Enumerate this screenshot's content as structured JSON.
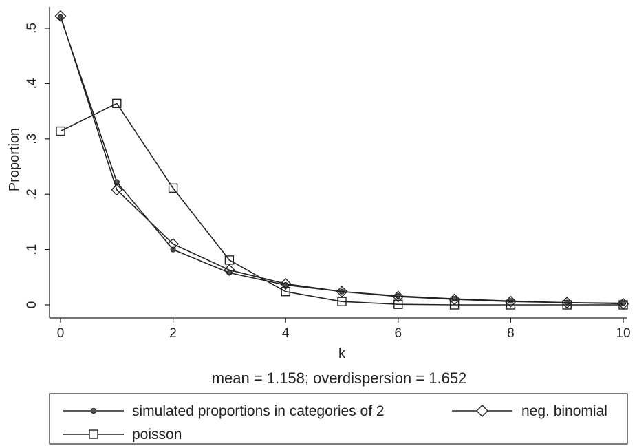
{
  "chart_data": {
    "type": "line",
    "xlabel": "k",
    "ylabel": "Proportion",
    "xlim": [
      0,
      10
    ],
    "ylim": [
      0,
      0.52
    ],
    "xticks": [
      "0",
      "2",
      "4",
      "6",
      "8",
      "10"
    ],
    "yticks": [
      "0",
      ".1",
      ".2",
      ".3",
      ".4",
      ".5"
    ],
    "note": "mean = 1.158; overdispersion = 1.652",
    "grid": false,
    "legend_position": "bottom",
    "series": [
      {
        "name": "simulated proportions in categories of 2",
        "marker": "small-filled-circle",
        "x": [
          0,
          1,
          2,
          3,
          4,
          5,
          6,
          7,
          8,
          9,
          10
        ],
        "values": [
          0.52,
          0.222,
          0.1,
          0.058,
          0.036,
          0.024,
          0.016,
          0.011,
          0.007,
          0.004,
          0.003
        ]
      },
      {
        "name": "neg. binomial",
        "marker": "hollow-diamond",
        "x": [
          0,
          1,
          2,
          3,
          4,
          5,
          6,
          7,
          8,
          9,
          10
        ],
        "values": [
          0.522,
          0.208,
          0.11,
          0.063,
          0.038,
          0.024,
          0.015,
          0.01,
          0.006,
          0.004,
          0.002
        ]
      },
      {
        "name": "poisson",
        "marker": "hollow-square",
        "x": [
          0,
          1,
          2,
          3,
          4,
          5,
          6,
          7,
          8,
          9,
          10
        ],
        "values": [
          0.314,
          0.364,
          0.211,
          0.081,
          0.024,
          0.006,
          0.001,
          0.0,
          0.0,
          0.0,
          0.0
        ]
      }
    ],
    "colors": {
      "line": "#222222",
      "background": "#ffffff"
    }
  }
}
